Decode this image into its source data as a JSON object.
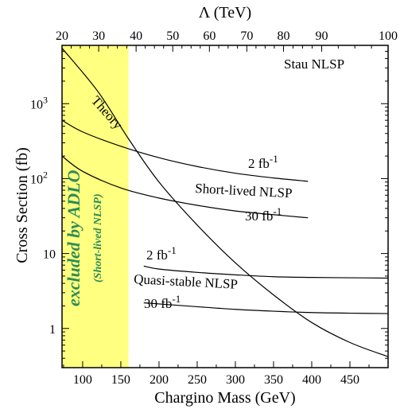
{
  "chart_data": {
    "type": "line",
    "title": "",
    "xlabel": "Chargino Mass (GeV)",
    "ylabel": "Cross Section (fb)",
    "top_axis_label": "Λ (TeV)",
    "xlim": [
      73,
      500
    ],
    "ylim": [
      0.3,
      6000
    ],
    "yscale": "log",
    "grid": false,
    "x_ticks": [
      "100",
      "150",
      "200",
      "250",
      "300",
      "350",
      "400",
      "450"
    ],
    "top_ticks": [
      {
        "label": "20",
        "m": 73
      },
      {
        "label": "30",
        "m": 121
      },
      {
        "label": "40",
        "m": 170
      },
      {
        "label": "50",
        "m": 218
      },
      {
        "label": "60",
        "m": 266
      },
      {
        "label": "70",
        "m": 315
      },
      {
        "label": "80",
        "m": 363
      },
      {
        "label": "90",
        "m": 413
      },
      {
        "label": "100",
        "m": 500
      }
    ],
    "y_ticks": [
      {
        "label": "1",
        "exp": "",
        "value": 1
      },
      {
        "label": "10",
        "exp": "",
        "value": 10
      },
      {
        "label": "10",
        "exp": "2",
        "value": 100
      },
      {
        "label": "10",
        "exp": "3",
        "value": 1000
      }
    ],
    "excluded_region": {
      "x": [
        73,
        160
      ],
      "color": "#ffff80",
      "label": "excluded by ADLO",
      "sublabel": "(Short-lived NLSP)",
      "text_color": "#2e8b57"
    },
    "series": [
      {
        "name": "Theory",
        "x": [
          73,
          120,
          160,
          200,
          250,
          300,
          350,
          400,
          450,
          500
        ],
        "values": [
          5500,
          1450,
          340,
          90,
          24,
          7.5,
          2.8,
          1.2,
          0.65,
          0.42
        ]
      },
      {
        "name": "2 fb-1 Short-lived NLSP",
        "x": [
          73,
          100,
          150,
          200,
          250,
          300,
          350,
          395
        ],
        "values": [
          600,
          420,
          270,
          190,
          145,
          118,
          102,
          92
        ]
      },
      {
        "name": "30 fb-1 Short-lived NLSP",
        "x": [
          73,
          100,
          150,
          200,
          250,
          300,
          350,
          395
        ],
        "values": [
          200,
          125,
          75,
          55,
          44,
          37,
          33,
          30
        ]
      },
      {
        "name": "2 fb-1 Quasi-stable NLSP",
        "x": [
          180,
          200,
          250,
          300,
          350,
          400,
          450,
          500
        ],
        "values": [
          6.8,
          6.2,
          5.6,
          5.2,
          4.9,
          4.8,
          4.75,
          4.7
        ]
      },
      {
        "name": "30 fb-1 Quasi-stable NLSP",
        "x": [
          180,
          250,
          300,
          350,
          400,
          450,
          500
        ],
        "values": [
          2.2,
          1.95,
          1.8,
          1.7,
          1.63,
          1.6,
          1.58
        ]
      }
    ],
    "annotations": {
      "stau": "Stau NLSP",
      "theory": "Theory",
      "short_lived": "Short-lived NLSP",
      "quasi_stable": "Quasi-stable NLSP",
      "lumi_2": "2 fb",
      "lumi_30": "30 fb",
      "lumi_exp": "-1"
    }
  }
}
